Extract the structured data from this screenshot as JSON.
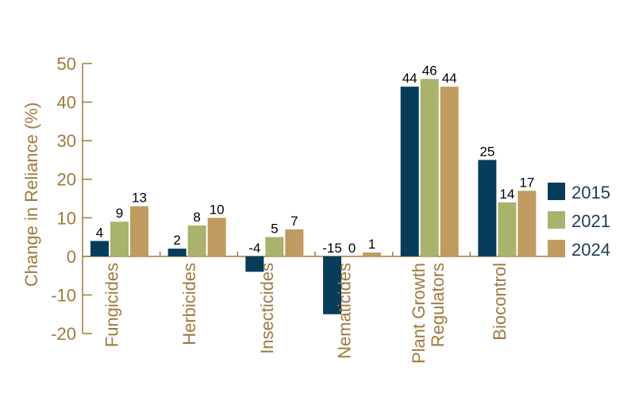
{
  "chart_data": {
    "type": "bar",
    "title": "",
    "xlabel": "",
    "ylabel": "Change in Reliance (%)",
    "ylim": [
      -20,
      50
    ],
    "yticks": [
      -20,
      -10,
      0,
      10,
      20,
      30,
      40,
      50
    ],
    "grid": false,
    "legend_position": "right",
    "categories": [
      [
        "Fungicides"
      ],
      [
        "Herbicides"
      ],
      [
        "Insecticides"
      ],
      [
        "Nematicides"
      ],
      [
        "Plant Growth",
        "Regulators"
      ],
      [
        "Biocontrol"
      ]
    ],
    "series": [
      {
        "name": "2015",
        "color": "#073d5a",
        "values": [
          4,
          2,
          -4,
          -15,
          44,
          25
        ]
      },
      {
        "name": "2021",
        "color": "#a9b36c",
        "values": [
          9,
          8,
          5,
          0,
          46,
          14
        ]
      },
      {
        "name": "2024",
        "color": "#c09b60",
        "values": [
          13,
          10,
          7,
          1,
          44,
          17
        ]
      }
    ],
    "axis_color": "#a07a3c"
  }
}
